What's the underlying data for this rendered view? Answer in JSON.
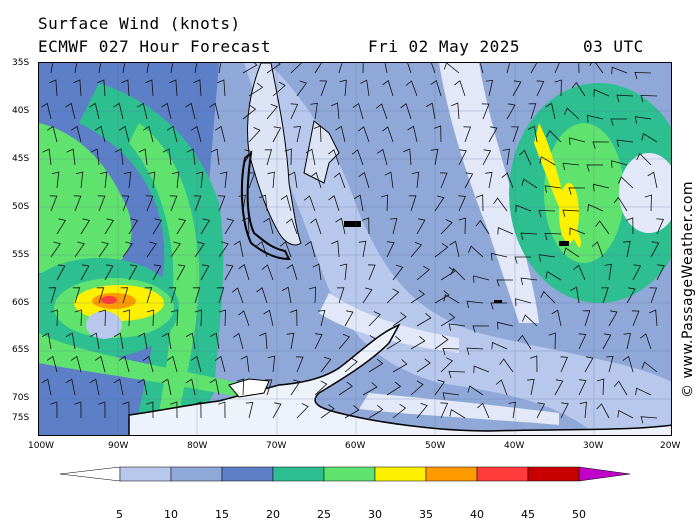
{
  "header": {
    "title": "Surface Wind (knots)",
    "model": "ECMWF 027 Hour Forecast",
    "date": "Fri 02 May 2025",
    "time": "03 UTC"
  },
  "watermark": "© www.PassageWeather.com",
  "map": {
    "latitude_labels": [
      "35S",
      "40S",
      "45S",
      "50S",
      "55S",
      "60S",
      "65S",
      "70S",
      "75S"
    ],
    "longitude_labels": [
      "100W",
      "90W",
      "80W",
      "70W",
      "60W",
      "50W",
      "40W",
      "30W",
      "20W"
    ],
    "extent": {
      "lon_min": -100,
      "lon_max": -20,
      "lat_min": -78,
      "lat_max": -35
    }
  },
  "colorbar": {
    "unit": "knots",
    "ticks": [
      "5",
      "10",
      "15",
      "20",
      "25",
      "30",
      "35",
      "40",
      "45",
      "50"
    ],
    "colors": [
      "#e2e8f7",
      "#b8c8ec",
      "#8fa8d8",
      "#5c7fc7",
      "#2dbf8f",
      "#5fe36e",
      "#fdf000",
      "#ff9b00",
      "#ff3b3b",
      "#c80000",
      "#c000c8"
    ]
  }
}
